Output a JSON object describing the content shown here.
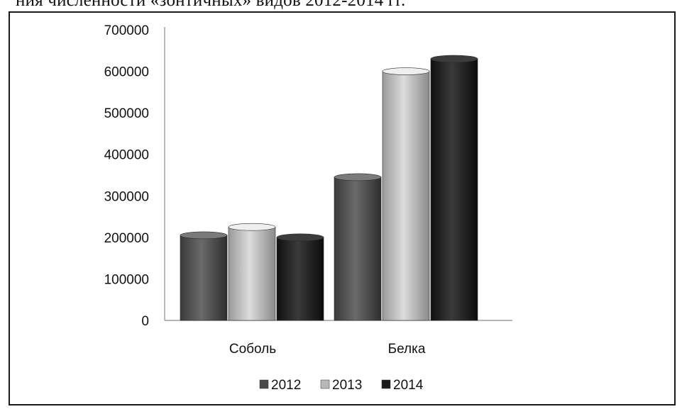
{
  "caption": "ния численности «зонтичных» видов 2012-2014 гг.",
  "colors": {
    "s2012": "#4a4a4a",
    "s2013": "#b8b8b8",
    "s2014": "#1c1c1c"
  },
  "chart_data": {
    "type": "bar",
    "title": "",
    "xlabel": "",
    "ylabel": "",
    "categories": [
      "Соболь",
      "Белка"
    ],
    "series": [
      {
        "name": "2012",
        "values": [
          205000,
          345000
        ]
      },
      {
        "name": "2013",
        "values": [
          225000,
          600000
        ]
      },
      {
        "name": "2014",
        "values": [
          200000,
          630000
        ]
      }
    ],
    "ylim": [
      0,
      700000
    ],
    "yticks": [
      0,
      100000,
      200000,
      300000,
      400000,
      500000,
      600000,
      700000
    ],
    "grid": false,
    "legend_position": "bottom"
  }
}
